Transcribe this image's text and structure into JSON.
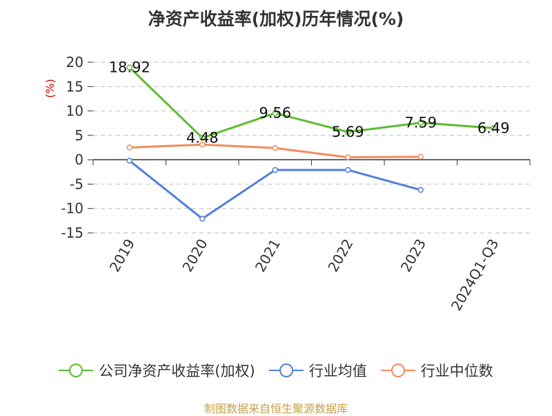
{
  "chart_data": {
    "type": "line",
    "title": "净资产收益率(加权)历年情况(%)",
    "ylabel": "(%)",
    "xlabel": "",
    "categories": [
      "2019",
      "2020",
      "2021",
      "2022",
      "2023",
      "2024Q1-Q3"
    ],
    "ylim": [
      -15,
      20
    ],
    "yticks": [
      20,
      15,
      10,
      5,
      0,
      -5,
      -10,
      -15
    ],
    "grid": true,
    "legend_position": "bottom",
    "series": [
      {
        "name": "公司净资产收益率(加权)",
        "color": "#5cbd2e",
        "values": [
          18.92,
          4.48,
          9.56,
          5.69,
          7.59,
          6.49
        ],
        "labels": [
          "18.92",
          "4.48",
          "9.56",
          "5.69",
          "7.59",
          "6.49"
        ]
      },
      {
        "name": "行业均值",
        "color": "#4f7fdc",
        "values": [
          -0.2,
          -12.1,
          -2.1,
          -2.1,
          -6.2,
          null
        ]
      },
      {
        "name": "行业中位数",
        "color": "#f48c5a",
        "values": [
          2.5,
          3.1,
          2.4,
          0.5,
          0.6,
          null
        ]
      }
    ]
  },
  "source": "制图数据来自恒生聚源数据库"
}
